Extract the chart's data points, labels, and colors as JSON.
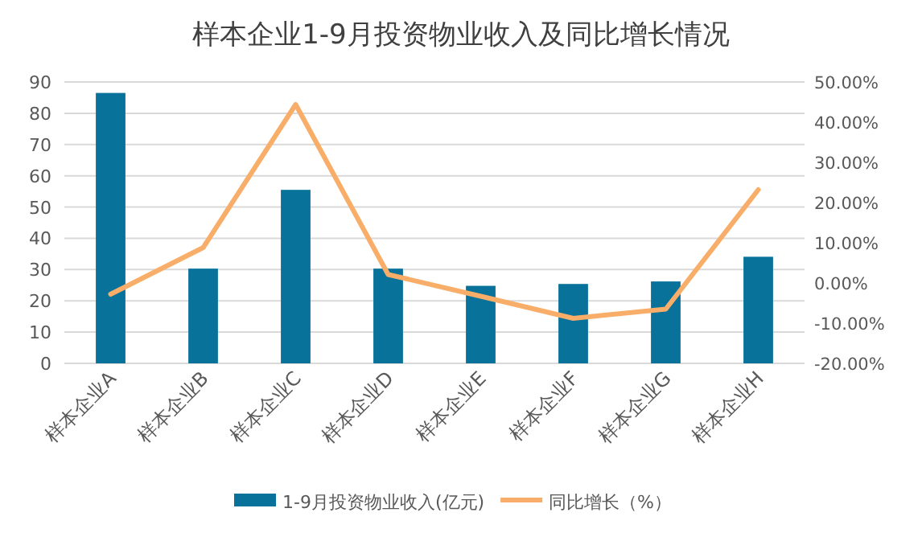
{
  "chart_data": {
    "type": "bar",
    "title": "样本企业1-9月投资物业收入及同比增长情况",
    "categories": [
      "样本企业A",
      "样本企业B",
      "样本企业C",
      "样本企业D",
      "样本企业E",
      "样本企业F",
      "样本企业G",
      "样本企业H"
    ],
    "series": [
      {
        "name": "1-9月投资物业收入(亿元)",
        "color": "#08729a",
        "values": [
          86.5,
          30.3,
          55.5,
          30.3,
          24.8,
          25.4,
          26.2,
          34.1
        ]
      },
      {
        "name": "同比增长（%）",
        "type": "line",
        "axis": "y2",
        "color": "#f8ad68",
        "values": [
          -2.8,
          8.8,
          44.4,
          2.1,
          -3.3,
          -8.8,
          -6.5,
          23.2
        ]
      }
    ],
    "ylim": [
      0,
      90
    ],
    "yticks": [
      0,
      10,
      20,
      30,
      40,
      50,
      60,
      70,
      80,
      90
    ],
    "y2lim": [
      -20,
      50
    ],
    "y2ticks": [
      {
        "value": -20,
        "label": "-20.00%"
      },
      {
        "value": -10,
        "label": "-10.00%"
      },
      {
        "value": 0,
        "label": "0.00%"
      },
      {
        "value": 10,
        "label": "10.00%"
      },
      {
        "value": 20,
        "label": "20.00%"
      },
      {
        "value": 30,
        "label": "30.00%"
      },
      {
        "value": 40,
        "label": "40.00%"
      },
      {
        "value": 50,
        "label": "50.00%"
      }
    ],
    "grid": "y",
    "legend": "bottom",
    "marker": "none",
    "line_style": "solid"
  }
}
